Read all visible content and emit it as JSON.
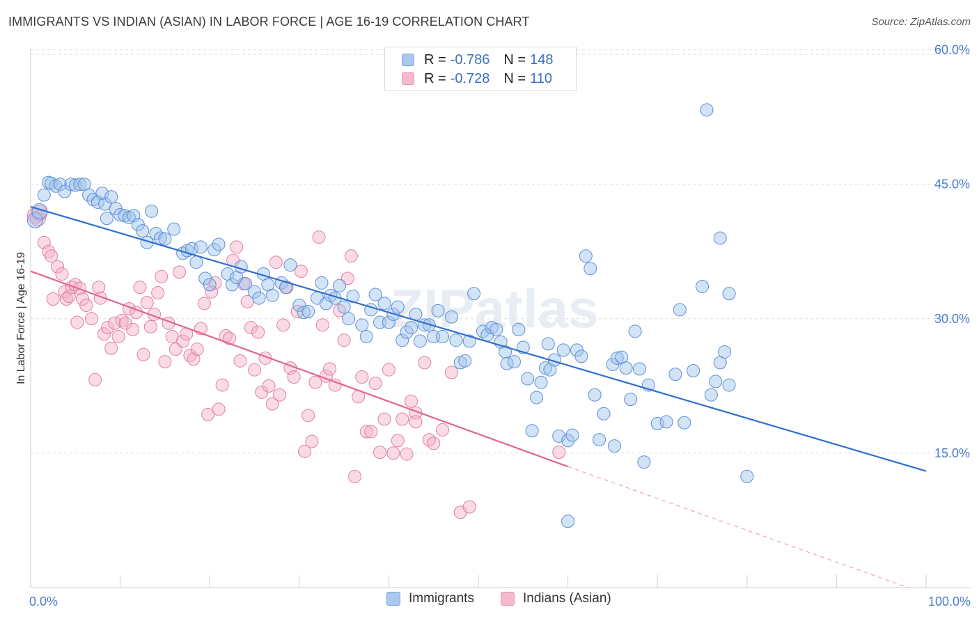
{
  "title": "IMMIGRANTS VS INDIAN (ASIAN) IN LABOR FORCE | AGE 16-19 CORRELATION CHART",
  "source": "Source: ZipAtlas.com",
  "watermark": "ZIPatlas",
  "legend_top": {
    "rows": [
      {
        "r_label": "R =",
        "r_value": "-0.786",
        "n_label": "N =",
        "n_value": "148",
        "color": "#9dc0ec"
      },
      {
        "r_label": "R =",
        "r_value": "-0.728",
        "n_label": "N =",
        "n_value": "110",
        "color": "#f4afc6"
      }
    ]
  },
  "chart_data": {
    "type": "scatter",
    "title": "IMMIGRANTS VS INDIAN (ASIAN) IN LABOR FORCE | AGE 16-19 CORRELATION CHART",
    "xlabel": "",
    "ylabel": "In Labor Force | Age 16-19",
    "xlim": [
      0,
      100
    ],
    "ylim": [
      0,
      63
    ],
    "x_tick_labels": [
      "0.0%",
      "100.0%"
    ],
    "y_ticks": [
      15,
      30,
      45,
      60
    ],
    "y_tick_labels": [
      "15.0%",
      "30.0%",
      "45.0%",
      "60.0%"
    ],
    "grid": true,
    "legend_placement": "bottom",
    "series": [
      {
        "name": "Immigrants",
        "color": "#9dc0ec",
        "stroke": "#5b8fd6",
        "line_color": "#2f6fce",
        "trend": {
          "x0": 0,
          "y0": 42.5,
          "x1": 100,
          "y1": 13.0
        },
        "points": [
          [
            0.5,
            41
          ],
          [
            1,
            42
          ],
          [
            1.5,
            43.8
          ],
          [
            2,
            45.2
          ],
          [
            2.3,
            45.1
          ],
          [
            2.8,
            44.8
          ],
          [
            3.3,
            45
          ],
          [
            3.8,
            44.2
          ],
          [
            4.5,
            45
          ],
          [
            5,
            44.9
          ],
          [
            5.5,
            45
          ],
          [
            6,
            45
          ],
          [
            6.5,
            43.8
          ],
          [
            7,
            43.3
          ],
          [
            7.5,
            43
          ],
          [
            8,
            44
          ],
          [
            8.3,
            42.8
          ],
          [
            8.5,
            41.2
          ],
          [
            9,
            43.6
          ],
          [
            9.5,
            42.3
          ],
          [
            10,
            41.6
          ],
          [
            10.5,
            41.5
          ],
          [
            11,
            41.3
          ],
          [
            11.5,
            41.5
          ],
          [
            12,
            40.5
          ],
          [
            12.5,
            39.8
          ],
          [
            13,
            38.5
          ],
          [
            13.5,
            42
          ],
          [
            14,
            39.5
          ],
          [
            14.5,
            39
          ],
          [
            15,
            38.9
          ],
          [
            16,
            40
          ],
          [
            17,
            37.3
          ],
          [
            17.5,
            37.6
          ],
          [
            18,
            37.8
          ],
          [
            18.5,
            36.3
          ],
          [
            19,
            38
          ],
          [
            19.5,
            34.5
          ],
          [
            20,
            33.8
          ],
          [
            20.5,
            37.7
          ],
          [
            21,
            38.3
          ],
          [
            22,
            35
          ],
          [
            22.5,
            33.8
          ],
          [
            23,
            34.6
          ],
          [
            23.5,
            35.8
          ],
          [
            24,
            33.9
          ],
          [
            25,
            33
          ],
          [
            25.5,
            32.3
          ],
          [
            26,
            35
          ],
          [
            26.5,
            33.8
          ],
          [
            27,
            32.6
          ],
          [
            28,
            34
          ],
          [
            28.5,
            33.5
          ],
          [
            29,
            36
          ],
          [
            30,
            31.5
          ],
          [
            30.5,
            30.7
          ],
          [
            31,
            30.8
          ],
          [
            32,
            32.3
          ],
          [
            32.5,
            34
          ],
          [
            33,
            31.7
          ],
          [
            33.5,
            32.6
          ],
          [
            34,
            32.3
          ],
          [
            34.5,
            33.7
          ],
          [
            35,
            31.3
          ],
          [
            35.5,
            30
          ],
          [
            36,
            32.5
          ],
          [
            37,
            29.3
          ],
          [
            37.5,
            28
          ],
          [
            38,
            31
          ],
          [
            38.5,
            32.7
          ],
          [
            39,
            29.6
          ],
          [
            39.5,
            31.7
          ],
          [
            40,
            29.6
          ],
          [
            40.5,
            30.5
          ],
          [
            41,
            31.3
          ],
          [
            41.5,
            27.6
          ],
          [
            42,
            28.5
          ],
          [
            42.5,
            29
          ],
          [
            43,
            30.5
          ],
          [
            43.5,
            27.5
          ],
          [
            44,
            29.3
          ],
          [
            44.5,
            29.3
          ],
          [
            45,
            28
          ],
          [
            45.5,
            30.9
          ],
          [
            46,
            28
          ],
          [
            47,
            30.2
          ],
          [
            47.5,
            27.6
          ],
          [
            48,
            25.1
          ],
          [
            48.5,
            25.3
          ],
          [
            49,
            27.5
          ],
          [
            49.5,
            32.8
          ],
          [
            50.5,
            28.6
          ],
          [
            51,
            28.2
          ],
          [
            51.5,
            29
          ],
          [
            52,
            28.8
          ],
          [
            52.5,
            27.4
          ],
          [
            53,
            26.3
          ],
          [
            53.2,
            25
          ],
          [
            54,
            25.2
          ],
          [
            54.5,
            28.8
          ],
          [
            55,
            26.8
          ],
          [
            55.5,
            23.3
          ],
          [
            56,
            17.5
          ],
          [
            56.5,
            21.2
          ],
          [
            57,
            22.9
          ],
          [
            57.5,
            24.5
          ],
          [
            57.8,
            27.2
          ],
          [
            58,
            24.3
          ],
          [
            58.5,
            25.4
          ],
          [
            59,
            16.9
          ],
          [
            59.5,
            26.5
          ],
          [
            60,
            16.4
          ],
          [
            60.5,
            17
          ],
          [
            61,
            26.5
          ],
          [
            61.5,
            25.8
          ],
          [
            62,
            37
          ],
          [
            62.5,
            35.6
          ],
          [
            63,
            21.5
          ],
          [
            63.5,
            16.5
          ],
          [
            64,
            19.4
          ],
          [
            65,
            24.9
          ],
          [
            65.2,
            15.8
          ],
          [
            65.5,
            25.6
          ],
          [
            66,
            25.7
          ],
          [
            66.5,
            24.5
          ],
          [
            67,
            21
          ],
          [
            67.5,
            28.6
          ],
          [
            68,
            24.4
          ],
          [
            68.5,
            14
          ],
          [
            69,
            22.6
          ],
          [
            70,
            18.3
          ],
          [
            71,
            18.5
          ],
          [
            72,
            23.8
          ],
          [
            72.5,
            31
          ],
          [
            73,
            18.4
          ],
          [
            74,
            24.2
          ],
          [
            75,
            33.6
          ],
          [
            76,
            21.5
          ],
          [
            76.5,
            23
          ],
          [
            77,
            25.1
          ],
          [
            77.5,
            26.3
          ],
          [
            78,
            22.6
          ],
          [
            75.5,
            53.3
          ],
          [
            77,
            39
          ],
          [
            78,
            32.8
          ],
          [
            80,
            12.4
          ],
          [
            60,
            7.4
          ]
        ]
      },
      {
        "name": "Indians (Asian)",
        "color": "#f4afc6",
        "stroke": "#e07fa2",
        "line_color": "#e06690",
        "trend": {
          "x0": 0,
          "y0": 35.3,
          "x1": 60,
          "y1": 13.5
        },
        "trend_dashed": {
          "x0": 60,
          "y0": 13.5,
          "x1": 98,
          "y1": 0
        },
        "points": [
          [
            0.5,
            41.5
          ],
          [
            0.8,
            41.2
          ],
          [
            1,
            41.8
          ],
          [
            1.5,
            38.5
          ],
          [
            2,
            37.5
          ],
          [
            2.3,
            37
          ],
          [
            2.5,
            32.2
          ],
          [
            3,
            35.8
          ],
          [
            3.5,
            35
          ],
          [
            3.8,
            33
          ],
          [
            4,
            32.2
          ],
          [
            4.3,
            32.5
          ],
          [
            4.6,
            33.5
          ],
          [
            5,
            33.8
          ],
          [
            5.2,
            29.6
          ],
          [
            5.5,
            33.4
          ],
          [
            5.8,
            32.2
          ],
          [
            6.2,
            31.5
          ],
          [
            6.8,
            30
          ],
          [
            7.2,
            23.2
          ],
          [
            7.6,
            33.5
          ],
          [
            7.8,
            32.3
          ],
          [
            8.2,
            28.3
          ],
          [
            8.6,
            29
          ],
          [
            9,
            26.7
          ],
          [
            9.4,
            29.5
          ],
          [
            9.8,
            28
          ],
          [
            10.2,
            29.8
          ],
          [
            10.6,
            29.5
          ],
          [
            11,
            31.1
          ],
          [
            11.4,
            28.8
          ],
          [
            11.8,
            30.7
          ],
          [
            12.2,
            33.5
          ],
          [
            12.6,
            26
          ],
          [
            13,
            31.8
          ],
          [
            13.4,
            29.1
          ],
          [
            13.8,
            30.5
          ],
          [
            14.2,
            32.9
          ],
          [
            14.6,
            34.7
          ],
          [
            15,
            25.2
          ],
          [
            15.4,
            29.5
          ],
          [
            15.8,
            28
          ],
          [
            16.2,
            26.6
          ],
          [
            16.6,
            35.2
          ],
          [
            17,
            27.5
          ],
          [
            17.4,
            28.3
          ],
          [
            17.8,
            25.9
          ],
          [
            18.2,
            25.5
          ],
          [
            18.6,
            26.6
          ],
          [
            19,
            28.9
          ],
          [
            19.4,
            31.7
          ],
          [
            19.8,
            19.3
          ],
          [
            20.2,
            33
          ],
          [
            20.6,
            34
          ],
          [
            21,
            19.9
          ],
          [
            21.4,
            22.6
          ],
          [
            21.8,
            28.1
          ],
          [
            22.2,
            27.8
          ],
          [
            22.6,
            36.5
          ],
          [
            23,
            38
          ],
          [
            23.4,
            25.3
          ],
          [
            23.8,
            33.9
          ],
          [
            24.2,
            31.9
          ],
          [
            24.6,
            29
          ],
          [
            25,
            24.3
          ],
          [
            25.4,
            28.5
          ],
          [
            25.8,
            21.8
          ],
          [
            26.2,
            25.6
          ],
          [
            26.6,
            22.5
          ],
          [
            27,
            20.5
          ],
          [
            27.4,
            36.3
          ],
          [
            27.8,
            21.5
          ],
          [
            28.2,
            29.3
          ],
          [
            28.6,
            33.5
          ],
          [
            29,
            24.5
          ],
          [
            29.4,
            23.5
          ],
          [
            29.8,
            30.8
          ],
          [
            30.2,
            35.3
          ],
          [
            30.6,
            15.2
          ],
          [
            31,
            19.2
          ],
          [
            31.4,
            16.3
          ],
          [
            31.8,
            22.9
          ],
          [
            32.2,
            39.1
          ],
          [
            32.6,
            29.3
          ],
          [
            33,
            23.6
          ],
          [
            33.4,
            24.4
          ],
          [
            34,
            22.6
          ],
          [
            34.5,
            30.9
          ],
          [
            35,
            27.6
          ],
          [
            35.4,
            34.5
          ],
          [
            35.8,
            37
          ],
          [
            36.2,
            12.4
          ],
          [
            36.6,
            21.3
          ],
          [
            37,
            23.5
          ],
          [
            37.5,
            17.4
          ],
          [
            38,
            17.4
          ],
          [
            38.5,
            22.8
          ],
          [
            39,
            15.1
          ],
          [
            39.5,
            18.8
          ],
          [
            40,
            24.3
          ],
          [
            40.5,
            15
          ],
          [
            41,
            16.4
          ],
          [
            41.5,
            18.8
          ],
          [
            42,
            14.9
          ],
          [
            42.5,
            20.8
          ],
          [
            43,
            19.5
          ],
          [
            43,
            18.5
          ],
          [
            44,
            25.1
          ],
          [
            44.5,
            16.5
          ],
          [
            45,
            16.1
          ],
          [
            46,
            17.6
          ],
          [
            47,
            24
          ],
          [
            48,
            8.4
          ],
          [
            49,
            9
          ],
          [
            59,
            15.1
          ]
        ]
      }
    ]
  },
  "legend_bottom": {
    "items": [
      {
        "label": "Immigrants",
        "color": "#9dc0ec",
        "stroke": "#5b8fd6"
      },
      {
        "label": "Indians (Asian)",
        "color": "#f4afc6",
        "stroke": "#e07fa2"
      }
    ]
  }
}
